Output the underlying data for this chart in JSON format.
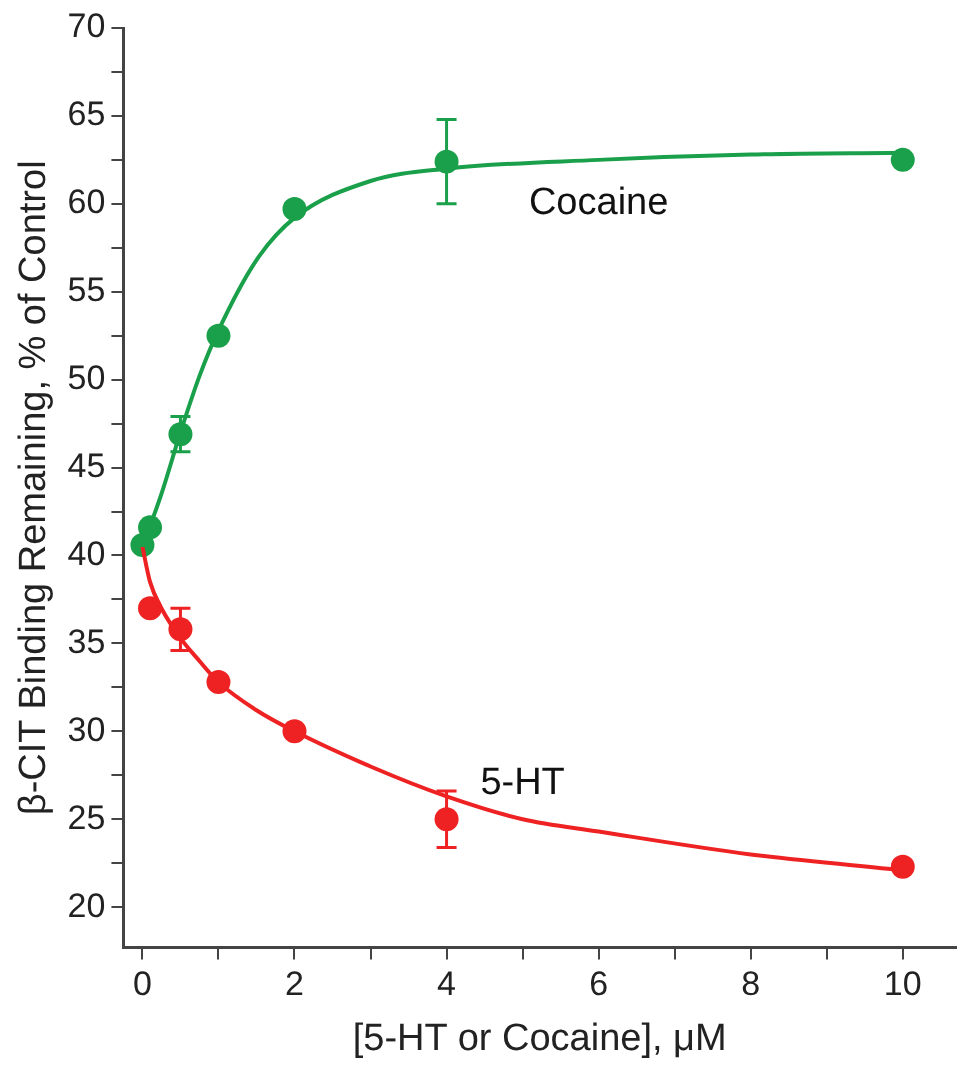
{
  "chart_data": {
    "type": "scatter",
    "xlabel": "[5-HT or Cocaine], μM",
    "ylabel": "β-CIT Binding Remaining, % of Control",
    "xlim": [
      -0.25,
      10.7
    ],
    "ylim": [
      17.7,
      70
    ],
    "xticks": [
      0,
      {
        "value": 1,
        "label": null
      },
      2,
      {
        "value": 3,
        "label": null
      },
      4,
      {
        "value": 5,
        "label": null
      },
      6,
      {
        "value": 7,
        "label": null
      },
      8,
      {
        "value": 9,
        "label": null
      },
      10
    ],
    "yticks": [
      20,
      {
        "value": 22.5,
        "label": null
      },
      25,
      {
        "value": 27.5,
        "label": null
      },
      30,
      {
        "value": 32.5,
        "label": null
      },
      35,
      {
        "value": 37.5,
        "label": null
      },
      40,
      {
        "value": 42.5,
        "label": null
      },
      45,
      {
        "value": 47.5,
        "label": null
      },
      50,
      {
        "value": 52.5,
        "label": null
      },
      55,
      {
        "value": 57.5,
        "label": null
      },
      60,
      {
        "value": 62.5,
        "label": null
      },
      65,
      {
        "value": 67.5,
        "label": null
      },
      70
    ],
    "grid": false,
    "legend": false,
    "marker": "circle",
    "series": [
      {
        "name": "Cocaine",
        "type": "line",
        "marker": "none",
        "color": "#1aa04a",
        "x": [
          0,
          0.25,
          0.5,
          0.75,
          1,
          1.5,
          2,
          3,
          4,
          6,
          8,
          10
        ],
        "values": [
          40.5,
          43.5,
          47,
          50.2,
          52.8,
          56.8,
          59.2,
          61.3,
          62,
          62.5,
          62.8,
          62.9
        ]
      },
      {
        "name": "5-HT",
        "type": "line",
        "marker": "none",
        "color": "#ee2222",
        "x": [
          0,
          0.1,
          0.25,
          0.5,
          0.75,
          1,
          1.5,
          2,
          3,
          4,
          5,
          6,
          8,
          10
        ],
        "values": [
          40.5,
          38.5,
          37,
          35.3,
          34,
          32.8,
          31.2,
          30,
          28,
          26.3,
          25,
          24.3,
          23,
          22.1
        ]
      },
      {
        "type": "scatter",
        "color": "#1aa04a",
        "x": [
          0,
          0.1,
          0.5,
          1,
          2,
          4,
          10
        ],
        "values": [
          40.6,
          41.6,
          46.9,
          52.5,
          59.7,
          62.4,
          62.5
        ],
        "errors": [
          null,
          null,
          1,
          null,
          null,
          2.4,
          null
        ]
      },
      {
        "type": "scatter",
        "color": "#ee2222",
        "x": [
          0.1,
          0.5,
          1,
          2,
          4,
          10
        ],
        "values": [
          37,
          35.8,
          32.8,
          30,
          25,
          22.3
        ],
        "errors": [
          null,
          1.2,
          null,
          null,
          1.6,
          null
        ]
      }
    ]
  }
}
